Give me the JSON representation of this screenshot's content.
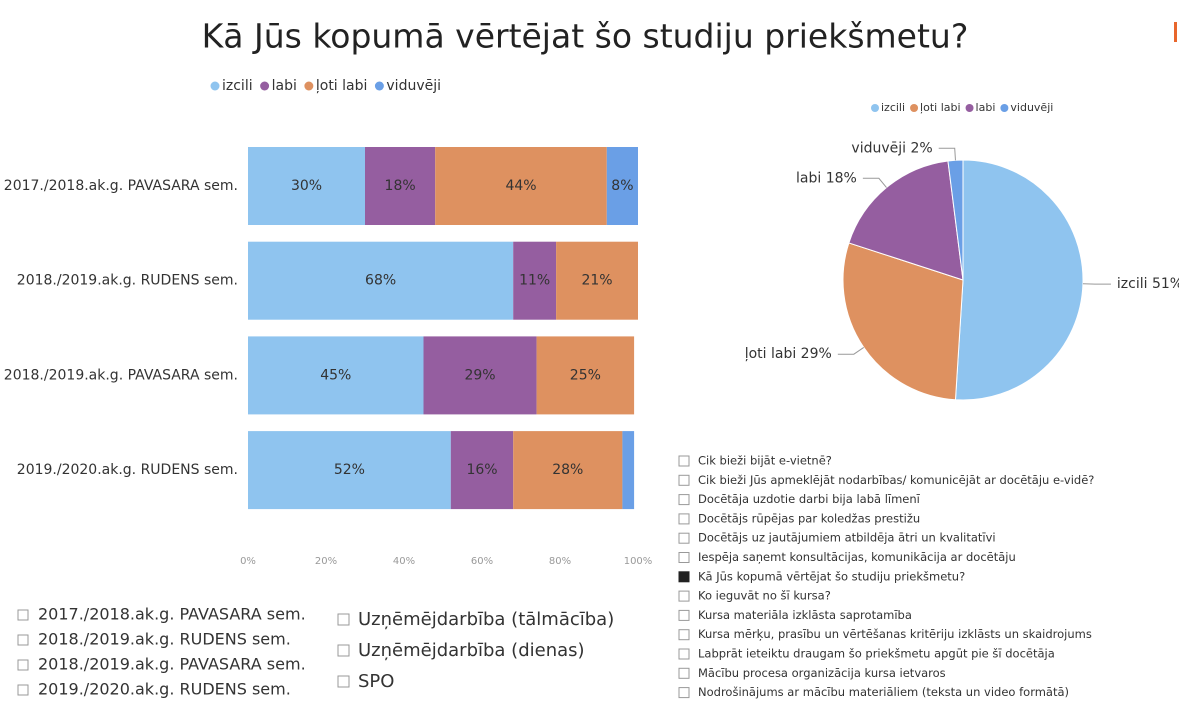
{
  "title": "Kā Jūs kopumā vērtējat šo studiju priekšmetu?",
  "chart_data": [
    {
      "type": "stacked-bar-horizontal",
      "categories": [
        "2017./2018.ak.g. PAVASARA sem.",
        "2018./2019.ak.g. RUDENS sem.",
        "2018./2019.ak.g. PAVASARA sem.",
        "2019./2020.ak.g. RUDENS sem."
      ],
      "series": [
        {
          "name": "izcili",
          "color": "#8fc4ef",
          "values": [
            30,
            68,
            45,
            52
          ],
          "value_labels": [
            "30%",
            "68%",
            "45%",
            "52%"
          ]
        },
        {
          "name": "labi",
          "color": "#955ea0",
          "values": [
            18,
            11,
            29,
            16
          ],
          "value_labels": [
            "18%",
            "11%",
            "29%",
            "16%"
          ]
        },
        {
          "name": "ļoti labi",
          "color": "#de9160",
          "values": [
            44,
            21,
            25,
            28
          ],
          "value_labels": [
            "44%",
            "21%",
            "25%",
            "28%"
          ]
        },
        {
          "name": "viduvēji",
          "color": "#6a9fe6",
          "values": [
            8,
            null,
            null,
            3
          ],
          "value_labels": [
            "8%",
            null,
            null,
            null
          ]
        }
      ],
      "xlim": [
        0,
        100
      ],
      "xticks": [
        {
          "value": 0,
          "label": "0%"
        },
        {
          "value": 20,
          "label": "20%"
        },
        {
          "value": 40,
          "label": "40%"
        },
        {
          "value": 60,
          "label": "60%"
        },
        {
          "value": 80,
          "label": "80%"
        },
        {
          "value": 100,
          "label": "100%"
        }
      ],
      "legend": "top"
    },
    {
      "type": "pie",
      "categories": [
        "izcili",
        "ļoti labi",
        "labi",
        "viduvēji"
      ],
      "values": [
        51,
        29,
        18,
        2
      ],
      "value_labels": [
        "izcili 51%",
        "ļoti labi 29%",
        "labi 18%",
        "viduvēji 2%"
      ],
      "colors": [
        "#8fc4ef",
        "#de9160",
        "#955ea0",
        "#6a9fe6"
      ],
      "legend": "top"
    }
  ],
  "slicers": {
    "semesters": [
      "2017./2018.ak.g. PAVASARA sem.",
      "2018./2019.ak.g. RUDENS sem.",
      "2018./2019.ak.g. PAVASARA sem.",
      "2019./2020.ak.g. RUDENS sem."
    ],
    "programs": [
      "Uzņēmējdarbība (tālmācība)",
      "Uzņēmējdarbība (dienas)",
      "SPO"
    ],
    "questions": {
      "items": [
        "Cik bieži bijāt e-vietnē?",
        "Cik bieži Jūs apmeklējāt nodarbības/ komunicējāt ar docētāju e-vidē?",
        "Docētāja uzdotie darbi bija labā līmenī",
        "Docētājs rūpējas par koledžas prestižu",
        "Docētājs uz jautājumiem atbildēja ātri un kvalitatīvi",
        "Iespēja saņemt konsultācijas, komunikācija ar docētāju",
        "Kā Jūs kopumā vērtējat šo studiju priekšmetu?",
        "Ko ieguvāt no šī kursa?",
        "Kursa materiāla izklāsta saprotamība",
        "Kursa mērķu, prasību un vērtēšanas kritēriju izklāsts un skaidrojums",
        "Labprāt ieteiktu draugam šo priekšmetu apgūt pie šī docētāja",
        "Mācību procesa organizācija kursa ietvaros",
        "Nodrošinājums ar mācību materiāliem (teksta un video formātā)"
      ],
      "selected": 6
    }
  }
}
